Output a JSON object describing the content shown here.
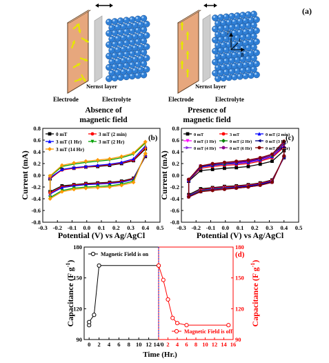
{
  "panel_a": {
    "label": "(a)",
    "left": {
      "electrode": "Electrode",
      "nernst": "Nernst layer",
      "electrolyte": "Electrolyte",
      "caption1": "Absence of",
      "caption2": "magnetic  field"
    },
    "right": {
      "electrode": "Electrode",
      "nernst": "Nernst layer",
      "electrolyte": "Electrolyte",
      "caption1": "Presence of",
      "caption2": "magnetic  field",
      "f_label": "F",
      "l_label": "L",
      "b_label": "B"
    },
    "colors": {
      "electrode": "#e7a77d",
      "sphere": "#2f7fd6",
      "arrow": "#e6e600"
    }
  },
  "chart_data": [
    {
      "id": "b",
      "type": "line",
      "label": "(b)",
      "xlabel": "Potential (V) vs Ag/AgCl",
      "ylabel": "Current (mA)",
      "xlim": [
        -0.3,
        0.5
      ],
      "ylim": [
        -0.8,
        0.8
      ],
      "xticks": [
        "-0.3",
        "-0.2",
        "-0.1",
        "0.0",
        "0.1",
        "0.2",
        "0.3",
        "0.4",
        "0.5"
      ],
      "yticks": [
        "-0.8",
        "-0.6",
        "-0.4",
        "-0.2",
        "0.0",
        "0.2",
        "0.4",
        "0.6",
        "0.8"
      ],
      "legend_position": "top-left",
      "series": [
        {
          "name": "0 mT",
          "color": "#000000",
          "marker": "square",
          "upper": [
            -0.06,
            0.1,
            0.12,
            0.14,
            0.15,
            0.17,
            0.2,
            0.25,
            0.45
          ],
          "lower": [
            -0.28,
            -0.18,
            -0.16,
            -0.14,
            -0.13,
            -0.12,
            -0.1,
            -0.05,
            0.32
          ]
        },
        {
          "name": "3 mT (2 min)",
          "color": "#ff0000",
          "marker": "circle",
          "upper": [
            -0.05,
            0.09,
            0.12,
            0.14,
            0.16,
            0.18,
            0.21,
            0.26,
            0.47
          ],
          "lower": [
            -0.3,
            -0.2,
            -0.17,
            -0.15,
            -0.14,
            -0.13,
            -0.11,
            -0.06,
            0.33
          ]
        },
        {
          "name": "3 mT (1 Hr)",
          "color": "#0000ff",
          "marker": "triangle",
          "upper": [
            -0.04,
            0.1,
            0.13,
            0.15,
            0.17,
            0.19,
            0.22,
            0.28,
            0.5
          ],
          "lower": [
            -0.32,
            -0.21,
            -0.18,
            -0.16,
            -0.15,
            -0.14,
            -0.12,
            -0.07,
            0.34
          ]
        },
        {
          "name": "3 mT (2 Hr)",
          "color": "#00a000",
          "marker": "triangle-down",
          "upper": [
            -0.02,
            0.15,
            0.19,
            0.22,
            0.24,
            0.26,
            0.3,
            0.36,
            0.55
          ],
          "lower": [
            -0.38,
            -0.26,
            -0.22,
            -0.2,
            -0.19,
            -0.18,
            -0.15,
            -0.1,
            0.36
          ]
        },
        {
          "name": "3 mT (14 Hr)",
          "color": "#ff9900",
          "marker": "diamond",
          "upper": [
            -0.01,
            0.17,
            0.21,
            0.24,
            0.26,
            0.28,
            0.32,
            0.38,
            0.57
          ],
          "lower": [
            -0.4,
            -0.28,
            -0.24,
            -0.22,
            -0.21,
            -0.2,
            -0.17,
            -0.12,
            0.37
          ]
        }
      ]
    },
    {
      "id": "c",
      "type": "line",
      "label": "(c)",
      "xlabel": "Potential (V) vs Ag/AgCl",
      "ylabel": "Current (mA)",
      "xlim": [
        -0.3,
        0.5
      ],
      "ylim": [
        -0.8,
        0.8
      ],
      "xticks": [
        "-0.3",
        "-0.2",
        "-0.1",
        "0.0",
        "0.1",
        "0.2",
        "0.3",
        "0.4",
        "0.5"
      ],
      "yticks": [
        "-0.8",
        "-0.6",
        "-0.4",
        "-0.2",
        "0.0",
        "0.2",
        "0.4",
        "0.6",
        "0.8"
      ],
      "legend_position": "top",
      "series": [
        {
          "name": "0 mT",
          "color": "#000000",
          "marker": "square",
          "upper": [
            -0.1,
            0.08,
            0.1,
            0.12,
            0.13,
            0.15,
            0.19,
            0.24,
            0.42
          ],
          "lower": [
            -0.33,
            -0.23,
            -0.21,
            -0.19,
            -0.18,
            -0.16,
            -0.13,
            -0.08,
            0.3
          ]
        },
        {
          "name": "3 mT",
          "color": "#ff0000",
          "marker": "circle",
          "upper": [
            -0.09,
            0.12,
            0.15,
            0.17,
            0.18,
            0.2,
            0.24,
            0.3,
            0.48
          ],
          "lower": [
            -0.35,
            -0.25,
            -0.22,
            -0.2,
            -0.19,
            -0.17,
            -0.14,
            -0.09,
            0.31
          ]
        },
        {
          "name": "0 mT (2 min)",
          "color": "#0000ff",
          "marker": "triangle",
          "upper": [
            -0.09,
            0.14,
            0.17,
            0.19,
            0.2,
            0.22,
            0.26,
            0.32,
            0.5
          ],
          "lower": [
            -0.35,
            -0.26,
            -0.23,
            -0.21,
            -0.2,
            -0.18,
            -0.15,
            -0.1,
            0.31
          ]
        },
        {
          "name": "0 mT (1 Hr)",
          "color": "#ff00ff",
          "marker": "triangle-down",
          "upper": [
            -0.08,
            0.15,
            0.18,
            0.2,
            0.21,
            0.23,
            0.27,
            0.33,
            0.52
          ],
          "lower": [
            -0.36,
            -0.27,
            -0.24,
            -0.22,
            -0.21,
            -0.19,
            -0.16,
            -0.11,
            0.32
          ]
        },
        {
          "name": "0 mT (2 Hr)",
          "color": "#008000",
          "marker": "diamond",
          "upper": [
            -0.08,
            0.15,
            0.18,
            0.2,
            0.22,
            0.24,
            0.28,
            0.34,
            0.54
          ],
          "lower": [
            -0.36,
            -0.27,
            -0.24,
            -0.22,
            -0.21,
            -0.19,
            -0.16,
            -0.11,
            0.32
          ]
        },
        {
          "name": "0 mT (3 Hr)",
          "color": "#000080",
          "marker": "triangle-left",
          "upper": [
            -0.08,
            0.15,
            0.18,
            0.21,
            0.22,
            0.24,
            0.28,
            0.35,
            0.55
          ],
          "lower": [
            -0.36,
            -0.28,
            -0.25,
            -0.23,
            -0.21,
            -0.19,
            -0.16,
            -0.11,
            0.32
          ]
        },
        {
          "name": "0 mT (4 Hr)",
          "color": "#8a2be2",
          "marker": "triangle-right",
          "upper": [
            -0.08,
            0.16,
            0.19,
            0.21,
            0.23,
            0.25,
            0.29,
            0.35,
            0.56
          ],
          "lower": [
            -0.37,
            -0.28,
            -0.25,
            -0.23,
            -0.22,
            -0.2,
            -0.17,
            -0.12,
            0.32
          ]
        },
        {
          "name": "0 mT (6 Hr)",
          "color": "#8b008b",
          "marker": "hexagon",
          "upper": [
            -0.07,
            0.16,
            0.19,
            0.22,
            0.23,
            0.25,
            0.29,
            0.36,
            0.57
          ],
          "lower": [
            -0.37,
            -0.28,
            -0.25,
            -0.23,
            -0.22,
            -0.2,
            -0.17,
            -0.12,
            0.33
          ]
        },
        {
          "name": "0 mT (14 Hr)",
          "color": "#800000",
          "marker": "star",
          "upper": [
            -0.07,
            0.16,
            0.2,
            0.22,
            0.24,
            0.26,
            0.3,
            0.36,
            0.58
          ],
          "lower": [
            -0.37,
            -0.28,
            -0.26,
            -0.24,
            -0.22,
            -0.2,
            -0.17,
            -0.12,
            0.33
          ]
        }
      ]
    },
    {
      "id": "d",
      "type": "line",
      "label": "(d)",
      "xlabel": "Time (Hr.)",
      "ylabel_left": "Capacitance (F g",
      "ylabel_right": "Capacitance (F g",
      "ylabel_sup": "-1",
      "ylim": [
        90,
        180
      ],
      "yticks": [
        "90",
        "120",
        "150",
        "180"
      ],
      "left_xticks": [
        "0",
        "2",
        "4",
        "6",
        "8",
        "10",
        "12"
      ],
      "right_xticks": [
        "14/0",
        "2",
        "4",
        "6",
        "8",
        "10",
        "12",
        "14",
        "16"
      ],
      "right_x_range": [
        0,
        16
      ],
      "left_x_range": [
        -1,
        14
      ],
      "left_color": "#000000",
      "right_color": "#ff0000",
      "divider_color": "#0000cc",
      "series": [
        {
          "name": "Magnetic Field is on",
          "color": "#000000",
          "x": [
            0,
            0,
            1,
            2,
            14
          ],
          "y": [
            104,
            107,
            114,
            162,
            162
          ]
        },
        {
          "name": "Magnetic Field is off",
          "color": "#ff0000",
          "x": [
            0,
            1,
            2,
            3,
            4,
            6,
            15
          ],
          "y": [
            162,
            148,
            129,
            111,
            106,
            104,
            104
          ]
        }
      ]
    }
  ]
}
